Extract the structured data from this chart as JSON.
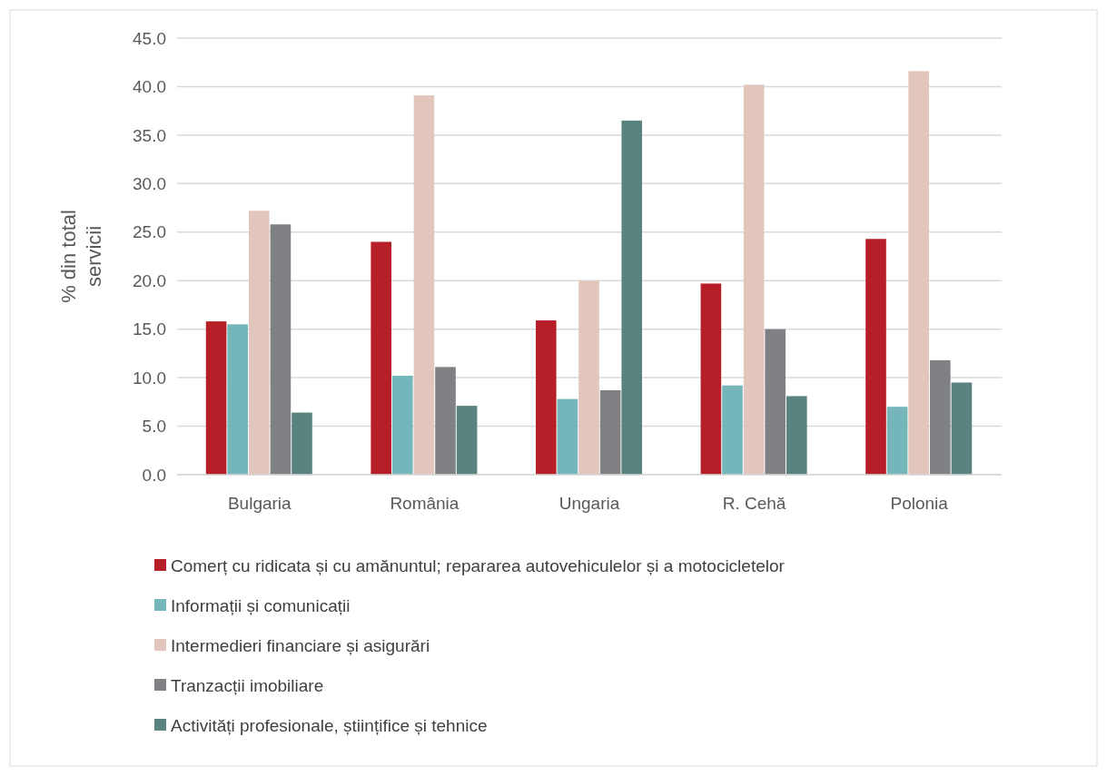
{
  "chart_data": {
    "type": "bar",
    "ylabel": "% din total servicii",
    "categories": [
      "Bulgaria",
      "România",
      "Ungaria",
      "R. Cehă",
      "Polonia"
    ],
    "series": [
      {
        "name": "Comerț cu ridicata și cu amănuntul; repararea autovehiculelor și a motocicletelor",
        "color": "#b71f28",
        "values": [
          15.8,
          24.0,
          15.9,
          19.7,
          24.3
        ]
      },
      {
        "name": "Informații și comunicații",
        "color": "#75b6bb",
        "values": [
          15.5,
          10.2,
          7.8,
          9.2,
          7.0
        ]
      },
      {
        "name": "Intermedieri financiare și asigurări",
        "color": "#e2c6bd",
        "values": [
          27.2,
          39.1,
          20.0,
          40.2,
          41.6
        ]
      },
      {
        "name": "Tranzacții imobiliare",
        "color": "#808184",
        "values": [
          25.8,
          11.1,
          8.7,
          15.0,
          11.8
        ]
      },
      {
        "name": "Activități profesionale, științifice și tehnice",
        "color": "#5a827e",
        "values": [
          6.4,
          7.1,
          36.5,
          8.1,
          9.5
        ]
      }
    ],
    "ylim": [
      0,
      45
    ],
    "yticks": [
      {
        "value": 0,
        "label": "0.0"
      },
      {
        "value": 5,
        "label": "5.0"
      },
      {
        "value": 10,
        "label": "10.0"
      },
      {
        "value": 15,
        "label": "15.0"
      },
      {
        "value": 20,
        "label": "20.0"
      },
      {
        "value": 25,
        "label": "25.0"
      },
      {
        "value": 30,
        "label": "30.0"
      },
      {
        "value": 35,
        "label": "35.0"
      },
      {
        "value": 40,
        "label": "40.0"
      },
      {
        "value": 45,
        "label": "45.0"
      }
    ],
    "grid": "y",
    "legend": "bottom"
  }
}
